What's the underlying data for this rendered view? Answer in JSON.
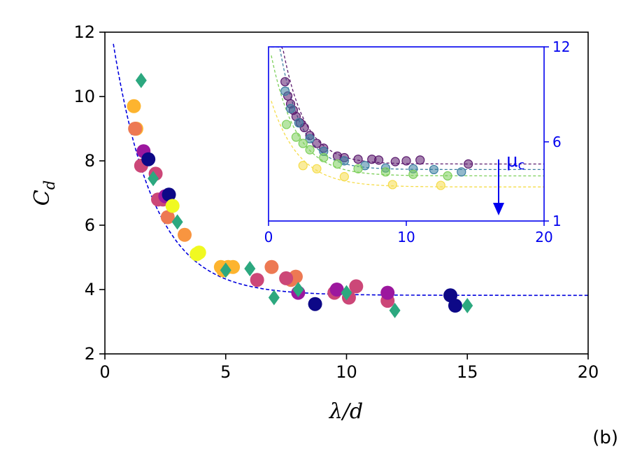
{
  "chart_data": [
    {
      "type": "scatter",
      "title": "",
      "xlabel_main": "λ/d",
      "ylabel_main": "C",
      "ylabel_sub": "d",
      "panel_label": "(b)",
      "xlim": [
        0,
        20
      ],
      "ylim": [
        2,
        12
      ],
      "xticks": [
        "0",
        "5",
        "10",
        "15",
        "20"
      ],
      "yticks": [
        "2",
        "4",
        "6",
        "8",
        "10",
        "12"
      ],
      "fit_curve": {
        "name": "fit",
        "color": "#0000dd",
        "style": "dashed",
        "asymptote": 3.82,
        "amplitude": 9.6,
        "decay": 1.7
      },
      "series": [
        {
          "name": "circles-orange",
          "marker": "circle",
          "color": "#fdb42f",
          "points": [
            [
              1.2,
              9.7
            ],
            [
              1.3,
              9.0
            ],
            [
              4.8,
              4.7
            ],
            [
              4.9,
              4.6
            ],
            [
              5.1,
              4.7
            ],
            [
              5.3,
              4.7
            ]
          ]
        },
        {
          "name": "circles-salmon",
          "marker": "circle",
          "color": "#ed7953",
          "points": [
            [
              1.25,
              9.0
            ],
            [
              2.6,
              6.25
            ],
            [
              6.9,
              4.7
            ],
            [
              7.7,
              4.3
            ],
            [
              7.9,
              4.4
            ]
          ]
        },
        {
          "name": "circles-magenta",
          "marker": "circle",
          "color": "#cc4778",
          "points": [
            [
              1.5,
              7.85
            ],
            [
              2.1,
              7.6
            ],
            [
              2.2,
              6.8
            ],
            [
              2.4,
              6.8
            ],
            [
              6.3,
              4.3
            ],
            [
              7.5,
              4.35
            ],
            [
              9.5,
              3.9
            ],
            [
              10.1,
              3.75
            ],
            [
              10.4,
              4.1
            ],
            [
              11.7,
              3.65
            ]
          ]
        },
        {
          "name": "circles-purple",
          "marker": "circle",
          "color": "#9c179e",
          "points": [
            [
              1.6,
              8.3
            ],
            [
              2.5,
              6.9
            ],
            [
              8.0,
              3.9
            ],
            [
              9.6,
              4.0
            ],
            [
              11.7,
              3.9
            ]
          ]
        },
        {
          "name": "circles-navy",
          "marker": "circle",
          "color": "#0d0887",
          "points": [
            [
              1.8,
              8.05
            ],
            [
              2.65,
              6.95
            ],
            [
              8.7,
              3.55
            ],
            [
              14.3,
              3.82
            ],
            [
              14.5,
              3.5
            ]
          ]
        },
        {
          "name": "circles-yellow",
          "marker": "circle",
          "color": "#f0f921",
          "points": [
            [
              2.8,
              6.6
            ],
            [
              3.8,
              5.1
            ],
            [
              3.9,
              5.15
            ]
          ]
        },
        {
          "name": "circles-orange-mid",
          "marker": "circle",
          "color": "#f89540",
          "points": [
            [
              3.3,
              5.7
            ]
          ]
        },
        {
          "name": "diamonds-green",
          "marker": "diamond",
          "color": "#2ca87f",
          "points": [
            [
              1.5,
              10.5
            ],
            [
              2.0,
              7.45
            ],
            [
              3.0,
              6.1
            ],
            [
              5.0,
              4.6
            ],
            [
              6.0,
              4.65
            ],
            [
              7.0,
              3.75
            ],
            [
              8.0,
              4.0
            ],
            [
              10.0,
              3.9
            ],
            [
              12.0,
              3.35
            ],
            [
              15.0,
              3.5
            ]
          ]
        }
      ]
    },
    {
      "type": "scatter",
      "name": "inset",
      "xlim": [
        0,
        20
      ],
      "ylim": [
        1,
        12
      ],
      "xticks": [
        "0",
        "10",
        "20"
      ],
      "yticks": [
        "1",
        "6",
        "12"
      ],
      "annotation": "μ",
      "annotation_sub": "c",
      "color": "#0000ee",
      "series": [
        {
          "name": "inset-dark-purple",
          "color": "#5b1a6e",
          "asymptote": 4.6,
          "amplitude": 14.0,
          "decay": 1.6,
          "points": [
            [
              1.2,
              9.8
            ],
            [
              1.4,
              8.9
            ],
            [
              1.6,
              8.4
            ],
            [
              1.8,
              8.0
            ],
            [
              2.0,
              7.6
            ],
            [
              2.3,
              7.2
            ],
            [
              2.6,
              6.9
            ],
            [
              3.0,
              6.4
            ],
            [
              3.5,
              5.9
            ],
            [
              4.0,
              5.6
            ],
            [
              5.0,
              5.1
            ],
            [
              5.5,
              5.0
            ],
            [
              6.5,
              4.9
            ],
            [
              7.5,
              4.9
            ],
            [
              8.0,
              4.85
            ],
            [
              9.2,
              4.75
            ],
            [
              10.0,
              4.8
            ],
            [
              11.0,
              4.85
            ],
            [
              14.5,
              4.6
            ]
          ]
        },
        {
          "name": "inset-teal",
          "color": "#3b7ea1",
          "asymptote": 4.25,
          "amplitude": 13.0,
          "decay": 1.55,
          "points": [
            [
              1.2,
              9.2
            ],
            [
              1.6,
              8.1
            ],
            [
              2.2,
              7.2
            ],
            [
              3.0,
              6.2
            ],
            [
              4.0,
              5.4
            ],
            [
              5.5,
              4.8
            ],
            [
              7.0,
              4.5
            ],
            [
              8.5,
              4.35
            ],
            [
              10.5,
              4.3
            ],
            [
              12.0,
              4.25
            ],
            [
              14.0,
              4.1
            ]
          ]
        },
        {
          "name": "inset-green",
          "color": "#7ccf5a",
          "asymptote": 3.85,
          "amplitude": 8.5,
          "decay": 1.8,
          "points": [
            [
              1.3,
              7.1
            ],
            [
              2.0,
              6.3
            ],
            [
              2.5,
              5.9
            ],
            [
              3.0,
              5.5
            ],
            [
              4.0,
              5.0
            ],
            [
              5.0,
              4.6
            ],
            [
              6.5,
              4.3
            ],
            [
              8.5,
              4.1
            ],
            [
              10.5,
              3.95
            ],
            [
              13.0,
              3.85
            ]
          ]
        },
        {
          "name": "inset-yellow",
          "color": "#f5dc4a",
          "asymptote": 3.15,
          "amplitude": 6.0,
          "decay": 2.0,
          "points": [
            [
              2.5,
              4.5
            ],
            [
              3.5,
              4.3
            ],
            [
              5.5,
              3.8
            ],
            [
              9.0,
              3.3
            ],
            [
              12.5,
              3.25
            ]
          ]
        }
      ]
    }
  ]
}
